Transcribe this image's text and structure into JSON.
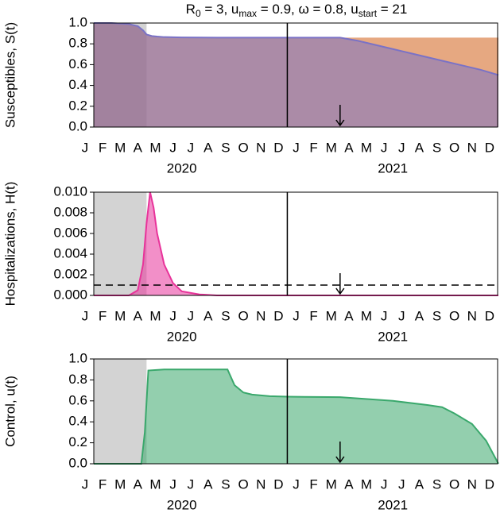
{
  "chart_data": [
    {
      "type": "area",
      "title": [
        {
          "text": "R"
        },
        {
          "text": "0",
          "sub": true
        },
        {
          "text": " = 3, u"
        },
        {
          "text": "max",
          "sub": true
        },
        {
          "text": " = 0.9, ω = 0.8, u"
        },
        {
          "text": "start",
          "sub": true
        },
        {
          "text": " = 21"
        }
      ],
      "ylabel": "Susceptibles, S(t)",
      "x": [
        1,
        2,
        3,
        3.5,
        3.8,
        4,
        4.3,
        4.6,
        5,
        6,
        8,
        10,
        12,
        14,
        15,
        16,
        17,
        18,
        19,
        20,
        21,
        22,
        23,
        24
      ],
      "series": [
        {
          "color": "#d2601a",
          "line": false,
          "values": [
            1,
            1,
            0.99,
            0.97,
            0.93,
            0.89,
            0.875,
            0.87,
            0.865,
            0.862,
            0.86,
            0.86,
            0.86,
            0.86,
            0.86,
            0.86,
            0.86,
            0.86,
            0.86,
            0.86,
            0.86,
            0.86,
            0.86,
            0.86
          ]
        },
        {
          "color": "#7a72c6",
          "line": true,
          "values": [
            1,
            1,
            0.99,
            0.97,
            0.93,
            0.89,
            0.875,
            0.87,
            0.865,
            0.862,
            0.86,
            0.86,
            0.86,
            0.86,
            0.86,
            0.83,
            0.79,
            0.75,
            0.71,
            0.67,
            0.63,
            0.59,
            0.55,
            0.5
          ]
        }
      ],
      "xlim": [
        1,
        24
      ],
      "ylim": [
        0,
        1
      ],
      "yticks": [
        {
          "value": 0,
          "label": "0.0"
        },
        0.2,
        0.4,
        0.6,
        0.8,
        {
          "value": 1,
          "label": "1.0"
        }
      ],
      "xticks": [
        {
          "value": 0.5,
          "label": "J"
        },
        {
          "value": 1.5,
          "label": "F"
        },
        {
          "value": 2.5,
          "label": "M"
        },
        {
          "value": 3.5,
          "label": "A"
        },
        {
          "value": 4.5,
          "label": "M"
        },
        {
          "value": 5.5,
          "label": "J"
        },
        {
          "value": 6.5,
          "label": "J"
        },
        {
          "value": 7.5,
          "label": "A"
        },
        {
          "value": 8.5,
          "label": "S"
        },
        {
          "value": 9.5,
          "label": "O"
        },
        {
          "value": 10.5,
          "label": "N"
        },
        {
          "value": 11.5,
          "label": "D"
        },
        {
          "value": 12.5,
          "label": "J"
        },
        {
          "value": 13.5,
          "label": "F"
        },
        {
          "value": 14.5,
          "label": "M"
        },
        {
          "value": 15.5,
          "label": "A"
        },
        {
          "value": 16.5,
          "label": "M"
        },
        {
          "value": 17.5,
          "label": "J"
        },
        {
          "value": 18.5,
          "label": "J"
        },
        {
          "value": 19.5,
          "label": "A"
        },
        {
          "value": 20.5,
          "label": "S"
        },
        {
          "value": 21.5,
          "label": "O"
        },
        {
          "value": 22.5,
          "label": "N"
        },
        {
          "value": 23.5,
          "label": "D"
        }
      ],
      "year_labels": [
        {
          "value": 6,
          "label": "2020"
        },
        {
          "value": 18,
          "label": "2021"
        }
      ],
      "shade": [
        1,
        4
      ],
      "divider": 12,
      "arrow_x": 15
    },
    {
      "type": "area",
      "ylabel": "Hospitalizations, H(t)",
      "x": [
        1,
        2,
        3,
        3.5,
        3.8,
        4,
        4.2,
        4.4,
        4.6,
        5,
        5.5,
        6,
        7,
        8,
        24
      ],
      "series": [
        {
          "color": "#e8339a",
          "line": true,
          "values": [
            0,
            0,
            0,
            0.0005,
            0.003,
            0.007,
            0.01,
            0.0085,
            0.006,
            0.003,
            0.0012,
            0.0004,
            0.0001,
            0,
            0
          ]
        }
      ],
      "xlim": [
        1,
        24
      ],
      "ylim": [
        0,
        0.01
      ],
      "yticks": [
        {
          "value": 0,
          "label": "0.000"
        },
        {
          "value": 0.002,
          "label": "0.002"
        },
        {
          "value": 0.004,
          "label": "0.004"
        },
        {
          "value": 0.006,
          "label": "0.006"
        },
        {
          "value": 0.008,
          "label": "0.008"
        },
        {
          "value": 0.01,
          "label": "0.010"
        }
      ],
      "xticks": [
        {
          "value": 0.5,
          "label": "J"
        },
        {
          "value": 1.5,
          "label": "F"
        },
        {
          "value": 2.5,
          "label": "M"
        },
        {
          "value": 3.5,
          "label": "A"
        },
        {
          "value": 4.5,
          "label": "M"
        },
        {
          "value": 5.5,
          "label": "J"
        },
        {
          "value": 6.5,
          "label": "J"
        },
        {
          "value": 7.5,
          "label": "A"
        },
        {
          "value": 8.5,
          "label": "S"
        },
        {
          "value": 9.5,
          "label": "O"
        },
        {
          "value": 10.5,
          "label": "N"
        },
        {
          "value": 11.5,
          "label": "D"
        },
        {
          "value": 12.5,
          "label": "J"
        },
        {
          "value": 13.5,
          "label": "F"
        },
        {
          "value": 14.5,
          "label": "M"
        },
        {
          "value": 15.5,
          "label": "A"
        },
        {
          "value": 16.5,
          "label": "M"
        },
        {
          "value": 17.5,
          "label": "J"
        },
        {
          "value": 18.5,
          "label": "J"
        },
        {
          "value": 19.5,
          "label": "A"
        },
        {
          "value": 20.5,
          "label": "S"
        },
        {
          "value": 21.5,
          "label": "O"
        },
        {
          "value": 22.5,
          "label": "N"
        },
        {
          "value": 23.5,
          "label": "D"
        }
      ],
      "year_labels": [
        {
          "value": 6,
          "label": "2020"
        },
        {
          "value": 18,
          "label": "2021"
        }
      ],
      "shade": [
        1,
        4
      ],
      "divider": 12,
      "arrow_x": 15,
      "hline": 0.001
    },
    {
      "type": "area",
      "ylabel": "Control, u(t)",
      "x": [
        1,
        3.7,
        3.9,
        4.1,
        5,
        8.6,
        9,
        9.5,
        10,
        11,
        12,
        15,
        18,
        20,
        20.8,
        21.5,
        22.5,
        23.3,
        24
      ],
      "series": [
        {
          "color": "#3aa86c",
          "line": true,
          "values": [
            0,
            0,
            0.3,
            0.89,
            0.9,
            0.9,
            0.75,
            0.68,
            0.66,
            0.645,
            0.64,
            0.635,
            0.6,
            0.56,
            0.54,
            0.48,
            0.38,
            0.22,
            0
          ]
        }
      ],
      "xlim": [
        1,
        24
      ],
      "ylim": [
        0,
        1
      ],
      "yticks": [
        {
          "value": 0,
          "label": "0.0"
        },
        0.2,
        0.4,
        0.6,
        0.8,
        {
          "value": 1,
          "label": "1.0"
        }
      ],
      "xticks": [
        {
          "value": 0.5,
          "label": "J"
        },
        {
          "value": 1.5,
          "label": "F"
        },
        {
          "value": 2.5,
          "label": "M"
        },
        {
          "value": 3.5,
          "label": "A"
        },
        {
          "value": 4.5,
          "label": "M"
        },
        {
          "value": 5.5,
          "label": "J"
        },
        {
          "value": 6.5,
          "label": "J"
        },
        {
          "value": 7.5,
          "label": "A"
        },
        {
          "value": 8.5,
          "label": "S"
        },
        {
          "value": 9.5,
          "label": "O"
        },
        {
          "value": 10.5,
          "label": "N"
        },
        {
          "value": 11.5,
          "label": "D"
        },
        {
          "value": 12.5,
          "label": "J"
        },
        {
          "value": 13.5,
          "label": "F"
        },
        {
          "value": 14.5,
          "label": "M"
        },
        {
          "value": 15.5,
          "label": "A"
        },
        {
          "value": 16.5,
          "label": "M"
        },
        {
          "value": 17.5,
          "label": "J"
        },
        {
          "value": 18.5,
          "label": "J"
        },
        {
          "value": 19.5,
          "label": "A"
        },
        {
          "value": 20.5,
          "label": "S"
        },
        {
          "value": 21.5,
          "label": "O"
        },
        {
          "value": 22.5,
          "label": "N"
        },
        {
          "value": 23.5,
          "label": "D"
        }
      ],
      "year_labels": [
        {
          "value": 6,
          "label": "2020"
        },
        {
          "value": 18,
          "label": "2021"
        }
      ],
      "shade": [
        1,
        4
      ],
      "divider": 12,
      "arrow_x": 15
    }
  ]
}
